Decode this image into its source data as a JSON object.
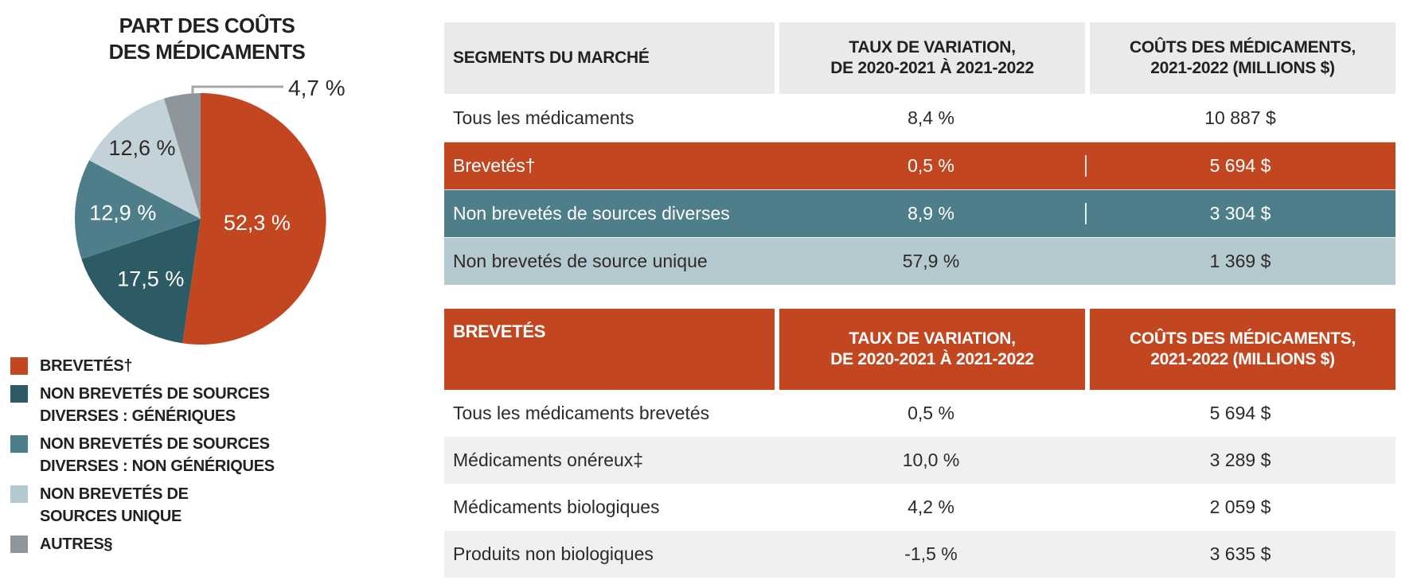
{
  "chart_data": [
    {
      "type": "pie",
      "title": "PART DES COÛTS DES MÉDICAMENTS",
      "labels": [
        "BREVETÉS†",
        "NON BREVETÉS DE SOURCES DIVERSES : GÉNÉRIQUES",
        "NON BREVETÉS DE SOURCES DIVERSES : NON GÉNÉRIQUES",
        "NON BREVETÉS DE SOURCES UNIQUE",
        "AUTRES§"
      ],
      "values": [
        52.3,
        17.5,
        12.9,
        12.6,
        4.7
      ],
      "slice_labels": [
        "52,3 %",
        "17,5 %",
        "12,9 %",
        "12,6 %",
        "4,7 %"
      ],
      "colors": [
        "#c24620",
        "#2c5b66",
        "#4d7e8a",
        "#c3d2d8",
        "#8e969b"
      ],
      "label_colors": [
        "#ffffff",
        "#ffffff",
        "#ffffff",
        "#2e2a28",
        "#2e2a28"
      ],
      "legend_position": "bottom-left"
    },
    {
      "type": "table",
      "columns": [
        "SEGMENTS DU MARCHÉ",
        "TAUX DE VARIATION, DE 2020-2021 À 2021-2022",
        "COÛTS DES MÉDICAMENTS, 2021-2022 (MILLIONS $)"
      ],
      "rows": [
        [
          "Tous les médicaments",
          "8,4 %",
          "10 887 $"
        ],
        [
          "Brevetés†",
          "0,5 %",
          "5 694 $"
        ],
        [
          "Non brevetés de sources diverses",
          "8,9 %",
          "3 304 $"
        ],
        [
          "Non brevetés de source unique",
          "57,9 %",
          "1 369 $"
        ]
      ]
    },
    {
      "type": "table",
      "columns": [
        "BREVETÉS",
        "TAUX DE VARIATION, DE 2020-2021 À 2021-2022",
        "COÛTS DES MÉDICAMENTS, 2021-2022 (MILLIONS $)"
      ],
      "rows": [
        [
          "Tous les médicaments brevetés",
          "0,5 %",
          "5 694 $"
        ],
        [
          "Médicaments onéreux‡",
          "10,0 %",
          "3 289 $"
        ],
        [
          "Médicaments biologiques",
          "4,2 %",
          "2 059 $"
        ],
        [
          "Produits non biologiques",
          "-1,5 %",
          "3 635 $"
        ]
      ]
    }
  ],
  "pie": {
    "title_lines": [
      "PART DES COÛTS",
      "DES MÉDICAMENTS"
    ],
    "callout_color": "#a2a6a9"
  },
  "legend": {
    "items": [
      {
        "color": "#c24620",
        "lines": [
          "BREVETÉS†"
        ]
      },
      {
        "color": "#2c5b66",
        "lines": [
          "NON BREVETÉS DE SOURCES",
          "DIVERSES : GÉNÉRIQUES"
        ]
      },
      {
        "color": "#4d7e8a",
        "lines": [
          "NON BREVETÉS DE SOURCES",
          "DIVERSES : NON GÉNÉRIQUES"
        ]
      },
      {
        "color": "#b5c9d0",
        "lines": [
          "NON BREVETÉS DE",
          "SOURCES UNIQUE"
        ]
      },
      {
        "color": "#8e969b",
        "lines": [
          "AUTRES§"
        ]
      }
    ]
  },
  "headers": {
    "t1": [
      [
        "SEGMENTS DU MARCHÉ"
      ],
      [
        "TAUX DE VARIATION,",
        "DE 2020-2021 À 2021-2022"
      ],
      [
        "COÛTS DES MÉDICAMENTS,",
        "2021-2022 (MILLIONS $)"
      ]
    ],
    "t2": [
      [
        "BREVETÉS"
      ],
      [
        "TAUX DE VARIATION,",
        "DE 2020-2021 À 2021-2022"
      ],
      [
        "COÛTS DES MÉDICAMENTS,",
        "2021-2022 (MILLIONS $)"
      ]
    ]
  }
}
